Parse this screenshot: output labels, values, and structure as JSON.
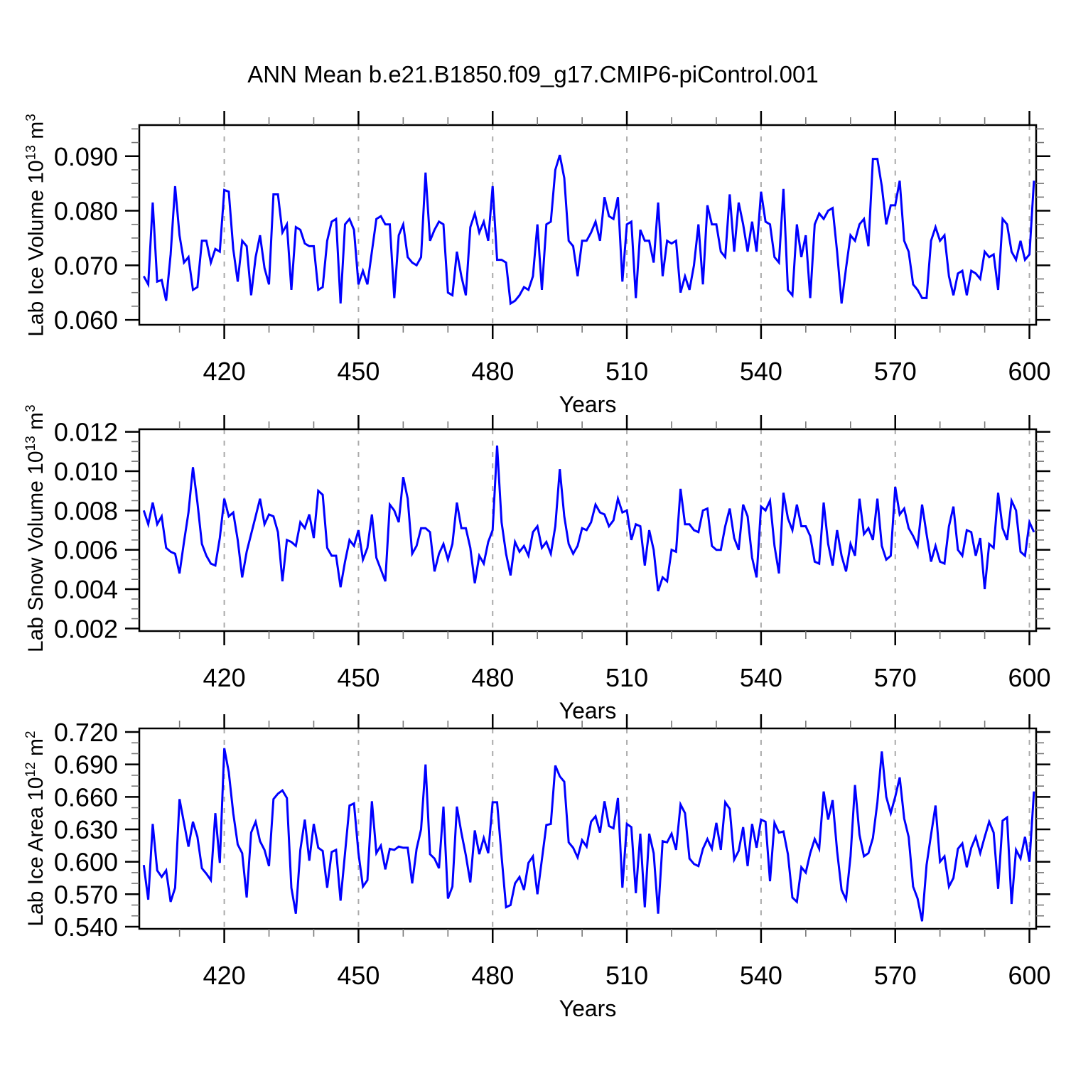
{
  "title": "ANN Mean b.e21.B1850.f09_g17.CMIP6-piControl.001",
  "colors": {
    "line": "#0000ff",
    "frame": "#000000",
    "grid": "#aaaaaa",
    "minor_tick": "#777777",
    "text": "#000000",
    "background": "#ffffff"
  },
  "chart_data": [
    {
      "type": "line",
      "title": "ANN Mean b.e21.B1850.f09_g17.CMIP6-piControl.001",
      "ylabel": "Lab Ice Volume 10^13 m^3",
      "ylabel_parts": {
        "base": "Lab Ice Volume 10",
        "exp": "13",
        "unit": " m",
        "unit_exp": "3"
      },
      "xlabel": "Years",
      "legend": "none",
      "grid": {
        "vertical_at_major_xticks": true,
        "horizontal": false,
        "style": "dashed"
      },
      "xlim": [
        401,
        601.5
      ],
      "ylim": [
        0.0591,
        0.0957
      ],
      "xticks_major": [
        420,
        450,
        480,
        510,
        540,
        570,
        600
      ],
      "xtick_labels": [
        "420",
        "450",
        "480",
        "510",
        "540",
        "570",
        "600"
      ],
      "xminor_step": 10,
      "yticks_major": [
        0.06,
        0.07,
        0.08,
        0.09
      ],
      "ytick_labels": [
        "0.060",
        "0.070",
        "0.080",
        "0.090"
      ],
      "yminor_step": 0.0025,
      "x_start": 402,
      "x_step": 1,
      "y": [
        0.068,
        0.0665,
        0.0815,
        0.067,
        0.0673,
        0.0635,
        0.072,
        0.0845,
        0.0755,
        0.0705,
        0.0715,
        0.0655,
        0.066,
        0.0745,
        0.0745,
        0.0705,
        0.073,
        0.0725,
        0.0838,
        0.0835,
        0.073,
        0.067,
        0.0745,
        0.0735,
        0.0645,
        0.0715,
        0.0755,
        0.0695,
        0.0665,
        0.083,
        0.083,
        0.076,
        0.0775,
        0.0655,
        0.077,
        0.0765,
        0.074,
        0.0735,
        0.0735,
        0.0655,
        0.066,
        0.0745,
        0.078,
        0.0785,
        0.063,
        0.0775,
        0.0785,
        0.0765,
        0.0665,
        0.069,
        0.0665,
        0.0725,
        0.0785,
        0.079,
        0.0775,
        0.0775,
        0.064,
        0.0755,
        0.0775,
        0.0715,
        0.0705,
        0.07,
        0.0715,
        0.087,
        0.0745,
        0.0765,
        0.078,
        0.0775,
        0.065,
        0.0645,
        0.0725,
        0.068,
        0.0645,
        0.077,
        0.0795,
        0.076,
        0.078,
        0.0745,
        0.0845,
        0.071,
        0.071,
        0.0705,
        0.063,
        0.0635,
        0.0645,
        0.066,
        0.0655,
        0.068,
        0.0775,
        0.0655,
        0.0775,
        0.078,
        0.0875,
        0.0902,
        0.086,
        0.0745,
        0.0735,
        0.068,
        0.0745,
        0.0745,
        0.076,
        0.078,
        0.0745,
        0.0825,
        0.079,
        0.0785,
        0.0825,
        0.067,
        0.0775,
        0.078,
        0.064,
        0.0765,
        0.0745,
        0.0745,
        0.0705,
        0.0815,
        0.068,
        0.0745,
        0.074,
        0.0745,
        0.065,
        0.068,
        0.0655,
        0.07,
        0.0775,
        0.0665,
        0.081,
        0.0775,
        0.0775,
        0.0725,
        0.0715,
        0.083,
        0.0725,
        0.0815,
        0.0775,
        0.0725,
        0.078,
        0.0725,
        0.0835,
        0.078,
        0.0775,
        0.0715,
        0.0705,
        0.084,
        0.0655,
        0.0645,
        0.0775,
        0.0715,
        0.0755,
        0.064,
        0.0775,
        0.0795,
        0.0785,
        0.08,
        0.0805,
        0.0725,
        0.063,
        0.0695,
        0.0755,
        0.0745,
        0.0775,
        0.0785,
        0.0735,
        0.0895,
        0.0895,
        0.0845,
        0.0775,
        0.081,
        0.081,
        0.0855,
        0.0745,
        0.0725,
        0.0665,
        0.0655,
        0.064,
        0.064,
        0.0745,
        0.077,
        0.0745,
        0.0755,
        0.068,
        0.0645,
        0.0685,
        0.069,
        0.0645,
        0.069,
        0.0685,
        0.0675,
        0.0725,
        0.0715,
        0.072,
        0.0655,
        0.0785,
        0.0775,
        0.0725,
        0.071,
        0.0745,
        0.071,
        0.072,
        0.0855
      ]
    },
    {
      "type": "line",
      "title": "ANN Mean b.e21.B1850.f09_g17.CMIP6-piControl.001",
      "ylabel": "Lab Snow Volume 10^13 m^3",
      "ylabel_parts": {
        "base": "Lab Snow Volume 10",
        "exp": "13",
        "unit": " m",
        "unit_exp": "3"
      },
      "xlabel": "Years",
      "legend": "none",
      "grid": {
        "vertical_at_major_xticks": true,
        "horizontal": false,
        "style": "dashed"
      },
      "xlim": [
        401,
        601.5
      ],
      "ylim": [
        0.00187,
        0.01213
      ],
      "xticks_major": [
        420,
        450,
        480,
        510,
        540,
        570,
        600
      ],
      "xtick_labels": [
        "420",
        "450",
        "480",
        "510",
        "540",
        "570",
        "600"
      ],
      "xminor_step": 10,
      "yticks_major": [
        0.002,
        0.004,
        0.006,
        0.008,
        0.01,
        0.012
      ],
      "ytick_labels": [
        "0.002",
        "0.004",
        "0.006",
        "0.008",
        "0.010",
        "0.012"
      ],
      "yminor_step": 0.0005,
      "x_start": 402,
      "x_step": 1,
      "y": [
        0.008,
        0.0073,
        0.0084,
        0.0073,
        0.0077,
        0.0061,
        0.0059,
        0.0058,
        0.0048,
        0.0064,
        0.0079,
        0.0102,
        0.0084,
        0.0063,
        0.0057,
        0.0053,
        0.0052,
        0.0066,
        0.0086,
        0.0077,
        0.0079,
        0.0065,
        0.0046,
        0.0059,
        0.0068,
        0.0077,
        0.0086,
        0.0073,
        0.0078,
        0.0077,
        0.0069,
        0.0044,
        0.0065,
        0.0064,
        0.0062,
        0.0074,
        0.0071,
        0.0078,
        0.0066,
        0.009,
        0.0088,
        0.0061,
        0.0057,
        0.0057,
        0.0041,
        0.0054,
        0.0065,
        0.0062,
        0.007,
        0.0055,
        0.0061,
        0.0078,
        0.0056,
        0.005,
        0.0044,
        0.0083,
        0.008,
        0.0074,
        0.0097,
        0.0086,
        0.0058,
        0.0062,
        0.0071,
        0.0071,
        0.0069,
        0.0049,
        0.0058,
        0.0063,
        0.0055,
        0.0063,
        0.0084,
        0.0071,
        0.0071,
        0.0061,
        0.0043,
        0.0057,
        0.0053,
        0.0064,
        0.007,
        0.0113,
        0.0074,
        0.0058,
        0.0047,
        0.0064,
        0.0059,
        0.0062,
        0.0057,
        0.0069,
        0.0072,
        0.0061,
        0.0064,
        0.0058,
        0.0072,
        0.0101,
        0.0077,
        0.0063,
        0.0058,
        0.0062,
        0.0071,
        0.007,
        0.0074,
        0.0083,
        0.0079,
        0.0078,
        0.0072,
        0.0075,
        0.0086,
        0.0079,
        0.008,
        0.0065,
        0.0073,
        0.0072,
        0.0052,
        0.007,
        0.006,
        0.0039,
        0.0046,
        0.0044,
        0.006,
        0.0059,
        0.0091,
        0.0073,
        0.0073,
        0.007,
        0.0069,
        0.008,
        0.0081,
        0.0062,
        0.006,
        0.006,
        0.0072,
        0.0081,
        0.0066,
        0.006,
        0.0083,
        0.0077,
        0.0056,
        0.0046,
        0.0082,
        0.008,
        0.0085,
        0.0062,
        0.0048,
        0.0089,
        0.0076,
        0.007,
        0.0083,
        0.0072,
        0.0072,
        0.0067,
        0.0054,
        0.0053,
        0.0084,
        0.0063,
        0.0052,
        0.007,
        0.0057,
        0.0049,
        0.0063,
        0.0057,
        0.0086,
        0.0068,
        0.0071,
        0.0065,
        0.0086,
        0.0062,
        0.0055,
        0.0057,
        0.0092,
        0.0078,
        0.0081,
        0.0071,
        0.0067,
        0.0062,
        0.0083,
        0.0068,
        0.0054,
        0.0062,
        0.0054,
        0.0053,
        0.0072,
        0.0082,
        0.006,
        0.0057,
        0.007,
        0.0069,
        0.0057,
        0.0066,
        0.004,
        0.0063,
        0.0061,
        0.0089,
        0.0071,
        0.0065,
        0.0085,
        0.008,
        0.0059,
        0.0057,
        0.0074,
        0.0069
      ]
    },
    {
      "type": "line",
      "title": "ANN Mean b.e21.B1850.f09_g17.CMIP6-piControl.001",
      "ylabel": "Lab Ice Area 10^12 m^2",
      "ylabel_parts": {
        "base": "Lab Ice Area 10",
        "exp": "12",
        "unit": " m",
        "unit_exp": "2"
      },
      "xlabel": "Years",
      "legend": "none",
      "grid": {
        "vertical_at_major_xticks": true,
        "horizontal": false,
        "style": "dashed"
      },
      "xlim": [
        401,
        601.5
      ],
      "ylim": [
        0.538,
        0.7233
      ],
      "xticks_major": [
        420,
        450,
        480,
        510,
        540,
        570,
        600
      ],
      "xtick_labels": [
        "420",
        "450",
        "480",
        "510",
        "540",
        "570",
        "600"
      ],
      "xminor_step": 10,
      "yticks_major": [
        0.54,
        0.57,
        0.6,
        0.63,
        0.66,
        0.69,
        0.72
      ],
      "ytick_labels": [
        "0.540",
        "0.570",
        "0.600",
        "0.630",
        "0.660",
        "0.690",
        "0.720"
      ],
      "yminor_step": 0.01,
      "x_start": 402,
      "x_step": 1,
      "y": [
        0.597,
        0.565,
        0.635,
        0.592,
        0.586,
        0.592,
        0.563,
        0.576,
        0.658,
        0.636,
        0.614,
        0.637,
        0.623,
        0.594,
        0.589,
        0.583,
        0.645,
        0.599,
        0.705,
        0.683,
        0.645,
        0.616,
        0.608,
        0.567,
        0.627,
        0.637,
        0.619,
        0.611,
        0.596,
        0.658,
        0.663,
        0.666,
        0.659,
        0.576,
        0.552,
        0.611,
        0.639,
        0.601,
        0.635,
        0.613,
        0.61,
        0.576,
        0.609,
        0.611,
        0.564,
        0.608,
        0.652,
        0.654,
        0.608,
        0.577,
        0.583,
        0.656,
        0.608,
        0.615,
        0.593,
        0.612,
        0.611,
        0.614,
        0.613,
        0.613,
        0.58,
        0.612,
        0.63,
        0.69,
        0.607,
        0.603,
        0.594,
        0.651,
        0.566,
        0.577,
        0.651,
        0.627,
        0.606,
        0.581,
        0.629,
        0.607,
        0.622,
        0.608,
        0.655,
        0.655,
        0.605,
        0.558,
        0.56,
        0.58,
        0.586,
        0.574,
        0.599,
        0.605,
        0.57,
        0.602,
        0.634,
        0.635,
        0.689,
        0.679,
        0.674,
        0.618,
        0.613,
        0.604,
        0.62,
        0.614,
        0.637,
        0.642,
        0.627,
        0.656,
        0.633,
        0.631,
        0.659,
        0.576,
        0.635,
        0.632,
        0.571,
        0.626,
        0.558,
        0.626,
        0.608,
        0.552,
        0.619,
        0.618,
        0.626,
        0.611,
        0.653,
        0.645,
        0.603,
        0.598,
        0.596,
        0.612,
        0.621,
        0.612,
        0.636,
        0.611,
        0.655,
        0.649,
        0.602,
        0.61,
        0.632,
        0.596,
        0.635,
        0.613,
        0.639,
        0.637,
        0.582,
        0.636,
        0.627,
        0.628,
        0.607,
        0.567,
        0.563,
        0.595,
        0.59,
        0.608,
        0.621,
        0.612,
        0.665,
        0.639,
        0.657,
        0.61,
        0.574,
        0.565,
        0.605,
        0.671,
        0.625,
        0.605,
        0.608,
        0.622,
        0.655,
        0.702,
        0.66,
        0.645,
        0.66,
        0.678,
        0.64,
        0.623,
        0.577,
        0.566,
        0.545,
        0.597,
        0.625,
        0.652,
        0.6,
        0.605,
        0.577,
        0.585,
        0.612,
        0.617,
        0.595,
        0.613,
        0.623,
        0.608,
        0.623,
        0.637,
        0.627,
        0.575,
        0.638,
        0.641,
        0.561,
        0.611,
        0.603,
        0.623,
        0.6,
        0.665
      ]
    }
  ]
}
